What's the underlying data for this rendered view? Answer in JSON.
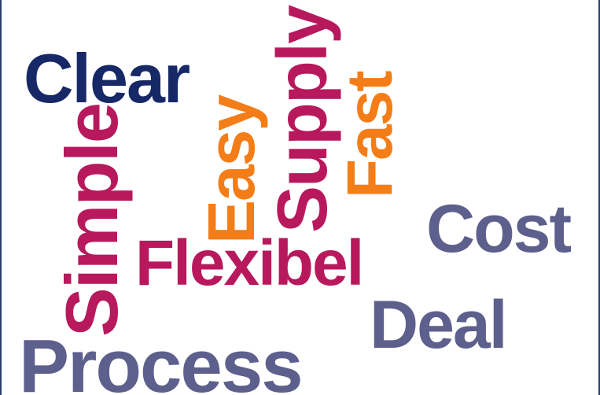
{
  "cloud": {
    "words": [
      {
        "id": "clear",
        "text": "Clear",
        "color": "#162866",
        "orientation": "horizontal"
      },
      {
        "id": "simple",
        "text": "Simple",
        "color": "#b7195c",
        "orientation": "vertical"
      },
      {
        "id": "easy",
        "text": "Easy",
        "color": "#f47d17",
        "orientation": "vertical"
      },
      {
        "id": "supply",
        "text": "Supply",
        "color": "#b7195c",
        "orientation": "vertical"
      },
      {
        "id": "fast",
        "text": "Fast",
        "color": "#f47d17",
        "orientation": "vertical"
      },
      {
        "id": "flexibel",
        "text": "Flexibel",
        "color": "#b7195c",
        "orientation": "horizontal"
      },
      {
        "id": "cost",
        "text": "Cost",
        "color": "#5d5f8c",
        "orientation": "horizontal"
      },
      {
        "id": "deal",
        "text": "Deal",
        "color": "#5d5f8c",
        "orientation": "horizontal"
      },
      {
        "id": "process",
        "text": "Process",
        "color": "#5d5f8c",
        "orientation": "horizontal"
      }
    ]
  }
}
